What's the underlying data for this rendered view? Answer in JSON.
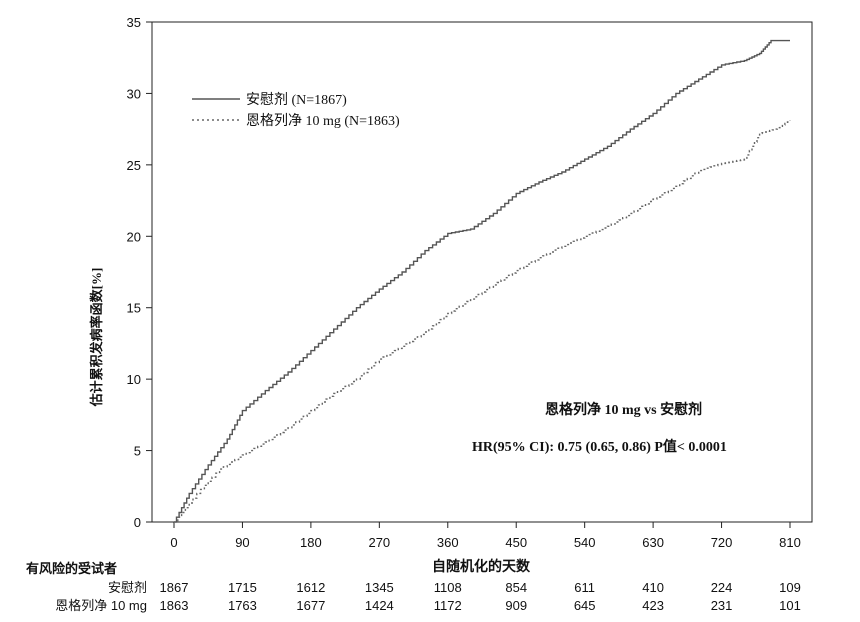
{
  "chart_data": {
    "type": "line",
    "ylabel": "估计累积发病率函数[%]",
    "xlabel": "自随机化的天数",
    "xlim": [
      0,
      810
    ],
    "ylim": [
      0,
      35
    ],
    "x_ticks": [
      0,
      90,
      180,
      270,
      360,
      450,
      540,
      630,
      720,
      810
    ],
    "y_ticks": [
      0,
      5,
      10,
      15,
      20,
      25,
      30,
      35
    ],
    "grid": false,
    "legend_position": "top-left",
    "series": [
      {
        "name": "安慰剂",
        "legend_label": "安慰剂  (N=1867)",
        "style": "solid",
        "color": "#555555",
        "points": [
          [
            0,
            0
          ],
          [
            20,
            2
          ],
          [
            45,
            4
          ],
          [
            70,
            5.8
          ],
          [
            90,
            7.8
          ],
          [
            120,
            9.2
          ],
          [
            150,
            10.5
          ],
          [
            180,
            12
          ],
          [
            210,
            13.5
          ],
          [
            240,
            15
          ],
          [
            270,
            16.3
          ],
          [
            300,
            17.5
          ],
          [
            330,
            19
          ],
          [
            360,
            20.2
          ],
          [
            390,
            20.5
          ],
          [
            420,
            21.6
          ],
          [
            450,
            23
          ],
          [
            480,
            23.8
          ],
          [
            510,
            24.5
          ],
          [
            540,
            25.4
          ],
          [
            570,
            26.3
          ],
          [
            600,
            27.5
          ],
          [
            630,
            28.6
          ],
          [
            660,
            30
          ],
          [
            690,
            31
          ],
          [
            720,
            32
          ],
          [
            750,
            32.3
          ],
          [
            770,
            32.8
          ],
          [
            785,
            33.7
          ],
          [
            810,
            33.7
          ]
        ]
      },
      {
        "name": "恩格列净 10 mg",
        "legend_label": "恩格列净 10 mg (N=1863)",
        "style": "dotted",
        "color": "#666666",
        "points": [
          [
            0,
            0
          ],
          [
            30,
            2
          ],
          [
            60,
            3.7
          ],
          [
            90,
            4.7
          ],
          [
            120,
            5.6
          ],
          [
            150,
            6.6
          ],
          [
            180,
            7.8
          ],
          [
            210,
            9
          ],
          [
            240,
            10
          ],
          [
            270,
            11.4
          ],
          [
            300,
            12.3
          ],
          [
            330,
            13.3
          ],
          [
            360,
            14.6
          ],
          [
            390,
            15.6
          ],
          [
            420,
            16.6
          ],
          [
            450,
            17.6
          ],
          [
            480,
            18.5
          ],
          [
            510,
            19.3
          ],
          [
            540,
            20
          ],
          [
            570,
            20.7
          ],
          [
            600,
            21.6
          ],
          [
            630,
            22.6
          ],
          [
            660,
            23.5
          ],
          [
            690,
            24.6
          ],
          [
            720,
            25.1
          ],
          [
            750,
            25.4
          ],
          [
            770,
            27.2
          ],
          [
            790,
            27.5
          ],
          [
            810,
            28.1
          ]
        ]
      }
    ],
    "annotations": {
      "comparison": "恩格列净 10 mg vs  安慰剂",
      "hr": "HR(95% CI): 0.75 (0.65, 0.86) P值< 0.0001"
    }
  },
  "risk_table": {
    "title": "有风险的受试者",
    "rows": [
      {
        "label": "安慰剂",
        "values": [
          "1867",
          "1715",
          "1612",
          "1345",
          "1108",
          "854",
          "611",
          "410",
          "224",
          "109"
        ]
      },
      {
        "label": "恩格列净 10 mg",
        "values": [
          "1863",
          "1763",
          "1677",
          "1424",
          "1172",
          "909",
          "645",
          "423",
          "231",
          "101"
        ]
      }
    ]
  }
}
